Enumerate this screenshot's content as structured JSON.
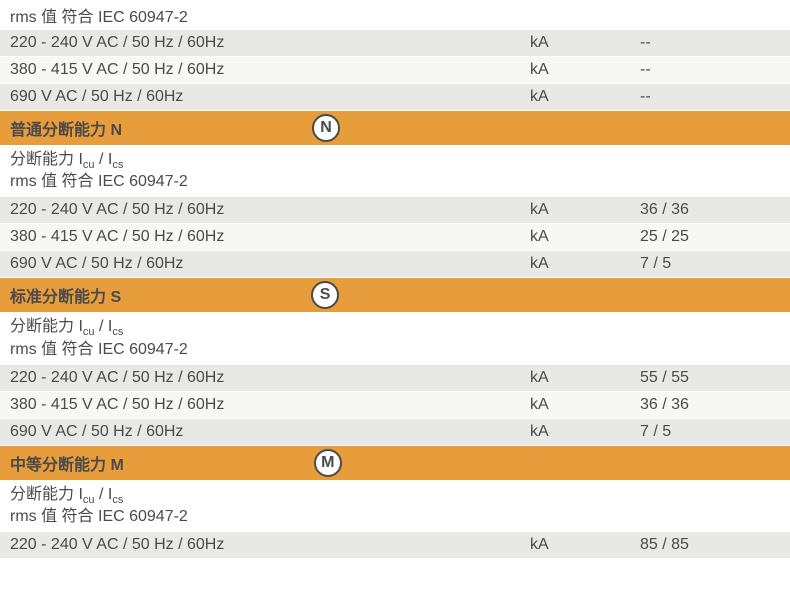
{
  "colors": {
    "header_bg": "#e89d3c",
    "row_light": "#f7f7f5",
    "row_alt": "#e8e8e6",
    "text": "#4a4a4a",
    "white": "#ffffff"
  },
  "top_rms": "rms 值 符合 IEC 60947-2",
  "top_rows": [
    {
      "label": "220 - 240 V AC / 50 Hz / 60Hz",
      "unit": "kA",
      "value": "--"
    },
    {
      "label": "380 - 415 V AC / 50 Hz / 60Hz",
      "unit": "kA",
      "value": "--"
    },
    {
      "label": "690 V AC / 50 Hz / 60Hz",
      "unit": "kA",
      "value": "--"
    }
  ],
  "sections": [
    {
      "title": "普通分断能力 N",
      "badge": "N",
      "sub1_prefix": "分断能力 I",
      "sub1_s1": "cu",
      "sub1_mid": " / I",
      "sub1_s2": "cs",
      "sub2": "rms 值 符合 IEC 60947-2",
      "rows": [
        {
          "label": "220 - 240 V AC / 50 Hz / 60Hz",
          "unit": "kA",
          "value": "36 / 36"
        },
        {
          "label": "380 - 415 V AC / 50 Hz / 60Hz",
          "unit": "kA",
          "value": "25 / 25"
        },
        {
          "label": "690 V AC / 50 Hz / 60Hz",
          "unit": "kA",
          "value": "7 / 5"
        }
      ]
    },
    {
      "title": "标准分断能力 S",
      "badge": "S",
      "sub1_prefix": "分断能力 I",
      "sub1_s1": "cu",
      "sub1_mid": " / I",
      "sub1_s2": "cs",
      "sub2": "rms 值 符合 IEC 60947-2",
      "rows": [
        {
          "label": "220 - 240 V AC / 50 Hz / 60Hz",
          "unit": "kA",
          "value": "55 / 55"
        },
        {
          "label": "380 - 415 V AC / 50 Hz / 60Hz",
          "unit": "kA",
          "value": "36 / 36"
        },
        {
          "label": "690 V AC / 50 Hz / 60Hz",
          "unit": "kA",
          "value": "7 / 5"
        }
      ]
    },
    {
      "title": "中等分断能力 M",
      "badge": "M",
      "sub1_prefix": "分断能力 I",
      "sub1_s1": "cu",
      "sub1_mid": " / I",
      "sub1_s2": "cs",
      "sub2": "rms 值 符合 IEC 60947-2",
      "rows": [
        {
          "label": "220 - 240 V AC / 50 Hz / 60Hz",
          "unit": "kA",
          "value": "85 / 85"
        }
      ]
    }
  ]
}
